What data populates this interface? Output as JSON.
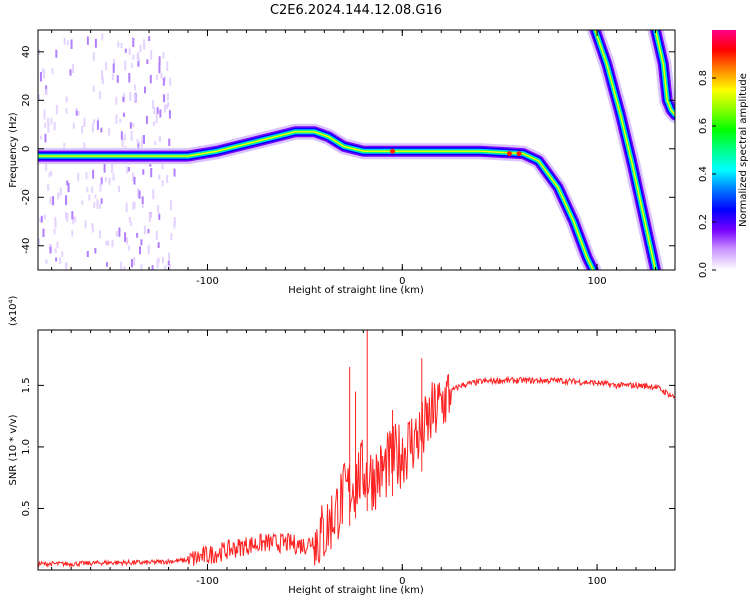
{
  "figure_title": "C2E6.2024.144.12.08.G16",
  "chart_data": [
    {
      "type": "heatmap",
      "title": "",
      "xlabel": "Height of straight line (km)",
      "ylabel": "Frequency (Hz)",
      "xlim": [
        -187,
        140
      ],
      "ylim": [
        -50,
        49
      ],
      "x_ticks": [
        -100,
        0,
        100
      ],
      "y_ticks": [
        -40,
        -20,
        0,
        20,
        40
      ],
      "grid": false,
      "colorbar": {
        "label": "Normalized spectral amplitude",
        "range": [
          0,
          1
        ],
        "ticks": [
          "0.0",
          "0.2",
          "0.4",
          "0.6",
          "0.8"
        ],
        "colors": [
          "#ffffff",
          "#cc99ff",
          "#7700ff",
          "#0000ff",
          "#0077ff",
          "#00ffff",
          "#00ff88",
          "#00ff00",
          "#88ff00",
          "#ffff00",
          "#ff8800",
          "#ff0000",
          "#ff0088"
        ]
      },
      "traces": [
        {
          "name": "",
          "points": [
            [
              -187,
              -3
            ],
            [
              -160,
              -3
            ],
            [
              -130,
              -3
            ],
            [
              -110,
              -3
            ],
            [
              -95,
              -1
            ],
            [
              -80,
              2
            ],
            [
              -65,
              5
            ],
            [
              -55,
              7
            ],
            [
              -45,
              7
            ],
            [
              -38,
              5
            ],
            [
              -30,
              1
            ],
            [
              -20,
              -1
            ],
            [
              -10,
              -1
            ],
            [
              0,
              -1
            ],
            [
              20,
              -1
            ],
            [
              40,
              -1
            ],
            [
              62,
              -2
            ],
            [
              70,
              -5
            ],
            [
              80,
              -16
            ],
            [
              88,
              -30
            ],
            [
              95,
              -45
            ],
            [
              98,
              -50
            ]
          ]
        },
        {
          "name": "",
          "points": [
            [
              99,
              49
            ],
            [
              105,
              35
            ],
            [
              112,
              14
            ],
            [
              118,
              -6
            ],
            [
              124,
              -28
            ],
            [
              130,
              -50
            ]
          ]
        },
        {
          "name": "",
          "points": [
            [
              130,
              49
            ],
            [
              134,
              35
            ],
            [
              136,
              20
            ],
            [
              138,
              16
            ],
            [
              140,
              14
            ]
          ]
        }
      ]
    },
    {
      "type": "line",
      "title": "",
      "xlabel": "Height of straight line (km)",
      "ylabel": "SNR (10 * v/v)",
      "y_multiplier": "(x10⁴)",
      "xlim": [
        -187,
        140
      ],
      "ylim": [
        0,
        1.95
      ],
      "x_ticks": [
        -100,
        0,
        100
      ],
      "y_ticks": [
        0.5,
        1.0,
        1.5
      ],
      "grid": false,
      "series": [
        {
          "name": "",
          "color": "#ff2222",
          "x": [
            -187,
            -170,
            -150,
            -130,
            -110,
            -100,
            -90,
            -80,
            -70,
            -60,
            -50,
            -40,
            -35,
            -30,
            -25,
            -20,
            -15,
            -10,
            -5,
            0,
            5,
            10,
            15,
            20,
            25,
            30,
            40,
            50,
            60,
            70,
            80,
            90,
            100,
            110,
            120,
            130,
            140
          ],
          "y": [
            0.05,
            0.05,
            0.06,
            0.06,
            0.08,
            0.12,
            0.16,
            0.2,
            0.22,
            0.22,
            0.2,
            0.3,
            0.45,
            0.6,
            0.7,
            0.8,
            0.75,
            0.8,
            0.9,
            0.95,
            1.05,
            1.1,
            1.25,
            1.35,
            1.45,
            1.5,
            1.53,
            1.54,
            1.54,
            1.54,
            1.54,
            1.53,
            1.52,
            1.5,
            1.5,
            1.49,
            1.4
          ]
        }
      ],
      "spikes": [
        [
          -27,
          1.65
        ],
        [
          -24,
          1.45
        ],
        [
          -18,
          1.95
        ],
        [
          -5,
          1.3
        ],
        [
          10,
          1.72
        ]
      ]
    }
  ]
}
